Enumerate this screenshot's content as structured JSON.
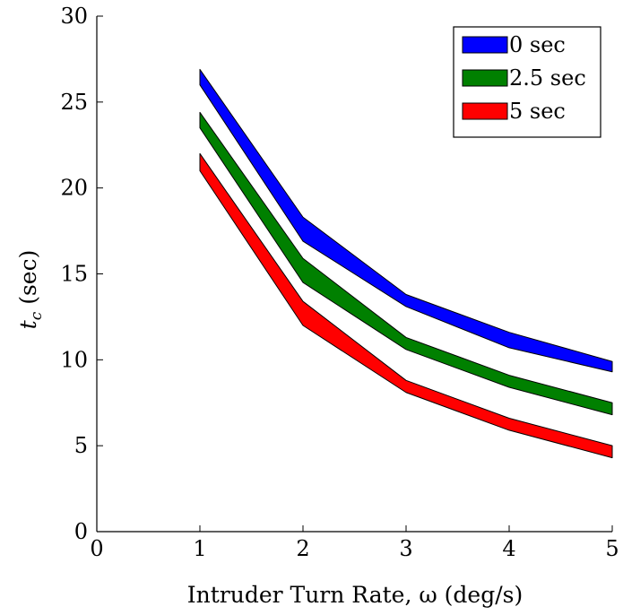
{
  "chart_data": {
    "type": "area",
    "title": "",
    "xlabel": "Intruder Turn Rate, ω (deg/s)",
    "ylabel_main": "t",
    "ylabel_sub": "c",
    "ylabel_rest": " (sec)",
    "xlim": [
      0,
      5
    ],
    "ylim": [
      0,
      30
    ],
    "xticks": [
      0,
      1,
      2,
      3,
      4,
      5
    ],
    "yticks": [
      0,
      5,
      10,
      15,
      20,
      25,
      30
    ],
    "grid": false,
    "legend_position": "top-right",
    "x": [
      1,
      2,
      3,
      4,
      5
    ],
    "series": [
      {
        "name": "0 sec",
        "color": "#0000ff",
        "upper": [
          26.9,
          18.3,
          13.8,
          11.6,
          9.9
        ],
        "lower": [
          26.0,
          16.9,
          13.1,
          10.7,
          9.3
        ]
      },
      {
        "name": "2.5 sec",
        "color": "#008000",
        "upper": [
          24.4,
          15.9,
          11.3,
          9.1,
          7.5
        ],
        "lower": [
          23.5,
          14.5,
          10.6,
          8.4,
          6.8
        ]
      },
      {
        "name": "5 sec",
        "color": "#ff0000",
        "upper": [
          22.0,
          13.4,
          8.8,
          6.6,
          5.0
        ],
        "lower": [
          21.0,
          12.0,
          8.1,
          5.9,
          4.3
        ]
      }
    ]
  }
}
